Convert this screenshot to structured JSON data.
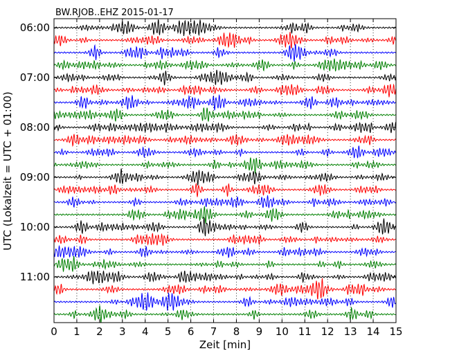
{
  "chart_data": {
    "type": "line",
    "title": "BW.RJOB..EHZ 2015-01-17",
    "xlabel": "Zeit  [min]",
    "ylabel": "UTC (Lokalzeit = UTC + 01:00)",
    "xlim": [
      0,
      15
    ],
    "x_ticks": [
      "0",
      "1",
      "2",
      "3",
      "4",
      "5",
      "6",
      "7",
      "8",
      "9",
      "10",
      "11",
      "12",
      "13",
      "14",
      "15"
    ],
    "y_tick_labels": [
      "06:00",
      "07:00",
      "08:00",
      "09:00",
      "10:00",
      "11:00"
    ],
    "traces_per_hour": 4,
    "trace_count": 24,
    "trace_colors": [
      "#000000",
      "#ff0000",
      "#0000ff",
      "#008000"
    ],
    "grid": "vertical dotted"
  }
}
